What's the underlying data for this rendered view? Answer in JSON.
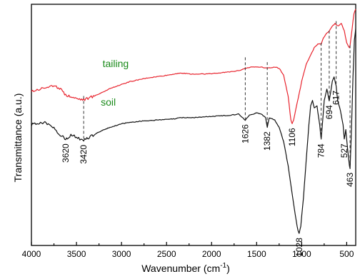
{
  "chart_data": {
    "type": "line",
    "xlabel": "Wavenumber (cm",
    "xlabel_sup": "-1",
    "xlabel_close": ")",
    "ylabel": "Transmittance (a.u.)",
    "xlim": [
      4000,
      400
    ],
    "x_ticks": [
      4000,
      3500,
      3000,
      2500,
      2000,
      1500,
      1000,
      500
    ],
    "y_ticks_shown": false,
    "grid": false,
    "series": [
      {
        "name": "tailing",
        "color": "#e8232d",
        "points": [
          [
            4000,
            0.64
          ],
          [
            3900,
            0.65
          ],
          [
            3800,
            0.66
          ],
          [
            3700,
            0.655
          ],
          [
            3620,
            0.625
          ],
          [
            3500,
            0.61
          ],
          [
            3420,
            0.605
          ],
          [
            3300,
            0.62
          ],
          [
            3100,
            0.655
          ],
          [
            2900,
            0.68
          ],
          [
            2700,
            0.695
          ],
          [
            2500,
            0.705
          ],
          [
            2350,
            0.715
          ],
          [
            2200,
            0.71
          ],
          [
            2000,
            0.712
          ],
          [
            1800,
            0.72
          ],
          [
            1700,
            0.725
          ],
          [
            1626,
            0.735
          ],
          [
            1550,
            0.74
          ],
          [
            1450,
            0.74
          ],
          [
            1382,
            0.735
          ],
          [
            1300,
            0.74
          ],
          [
            1250,
            0.735
          ],
          [
            1200,
            0.705
          ],
          [
            1150,
            0.62
          ],
          [
            1120,
            0.52
          ],
          [
            1106,
            0.505
          ],
          [
            1090,
            0.52
          ],
          [
            1050,
            0.59
          ],
          [
            1000,
            0.68
          ],
          [
            950,
            0.75
          ],
          [
            900,
            0.79
          ],
          [
            860,
            0.82
          ],
          [
            820,
            0.835
          ],
          [
            800,
            0.835
          ],
          [
            784,
            0.835
          ],
          [
            760,
            0.86
          ],
          [
            720,
            0.88
          ],
          [
            694,
            0.89
          ],
          [
            660,
            0.91
          ],
          [
            630,
            0.92
          ],
          [
            617,
            0.915
          ],
          [
            590,
            0.91
          ],
          [
            560,
            0.92
          ],
          [
            527,
            0.89
          ],
          [
            500,
            0.84
          ],
          [
            470,
            0.82
          ],
          [
            463,
            0.83
          ],
          [
            440,
            0.9
          ],
          [
            420,
            0.96
          ],
          [
            400,
            0.98
          ]
        ]
      },
      {
        "name": "soil",
        "color": "#111111",
        "points": [
          [
            4000,
            0.5
          ],
          [
            3900,
            0.51
          ],
          [
            3800,
            0.505
          ],
          [
            3750,
            0.49
          ],
          [
            3700,
            0.46
          ],
          [
            3650,
            0.45
          ],
          [
            3620,
            0.44
          ],
          [
            3600,
            0.445
          ],
          [
            3550,
            0.46
          ],
          [
            3500,
            0.45
          ],
          [
            3450,
            0.44
          ],
          [
            3420,
            0.435
          ],
          [
            3350,
            0.45
          ],
          [
            3200,
            0.48
          ],
          [
            3000,
            0.505
          ],
          [
            2800,
            0.515
          ],
          [
            2600,
            0.52
          ],
          [
            2400,
            0.525
          ],
          [
            2350,
            0.53
          ],
          [
            2200,
            0.53
          ],
          [
            2000,
            0.535
          ],
          [
            1800,
            0.54
          ],
          [
            1700,
            0.545
          ],
          [
            1626,
            0.52
          ],
          [
            1580,
            0.54
          ],
          [
            1500,
            0.55
          ],
          [
            1450,
            0.545
          ],
          [
            1400,
            0.53
          ],
          [
            1382,
            0.49
          ],
          [
            1360,
            0.53
          ],
          [
            1300,
            0.52
          ],
          [
            1250,
            0.49
          ],
          [
            1200,
            0.43
          ],
          [
            1150,
            0.33
          ],
          [
            1100,
            0.2
          ],
          [
            1060,
            0.1
          ],
          [
            1040,
            0.06
          ],
          [
            1028,
            0.05
          ],
          [
            1010,
            0.08
          ],
          [
            980,
            0.2
          ],
          [
            950,
            0.35
          ],
          [
            920,
            0.5
          ],
          [
            900,
            0.58
          ],
          [
            880,
            0.6
          ],
          [
            860,
            0.57
          ],
          [
            830,
            0.58
          ],
          [
            800,
            0.5
          ],
          [
            784,
            0.44
          ],
          [
            770,
            0.5
          ],
          [
            750,
            0.6
          ],
          [
            720,
            0.65
          ],
          [
            700,
            0.61
          ],
          [
            694,
            0.6
          ],
          [
            680,
            0.63
          ],
          [
            660,
            0.68
          ],
          [
            640,
            0.7
          ],
          [
            617,
            0.66
          ],
          [
            600,
            0.6
          ],
          [
            570,
            0.56
          ],
          [
            540,
            0.5
          ],
          [
            527,
            0.44
          ],
          [
            510,
            0.48
          ],
          [
            490,
            0.4
          ],
          [
            470,
            0.33
          ],
          [
            463,
            0.32
          ],
          [
            450,
            0.45
          ],
          [
            430,
            0.7
          ],
          [
            415,
            0.85
          ],
          [
            400,
            0.9
          ]
        ]
      }
    ],
    "series_labels": [
      {
        "text": "tailing",
        "color": "#1a8a1a",
        "x": 3210,
        "y": 0.74
      },
      {
        "text": "soil",
        "color": "#1a8a1a",
        "x": 3230,
        "y": 0.58
      }
    ],
    "peaks": [
      {
        "wavenumber": 3620,
        "label": "3620",
        "y_top": 0.44,
        "y_bottom": 0.44,
        "dashed": false
      },
      {
        "wavenumber": 3420,
        "label": "3420",
        "y_top": 0.62,
        "y_bottom": 0.435,
        "dashed": true
      },
      {
        "wavenumber": 1626,
        "label": "1626",
        "y_top": 0.78,
        "y_bottom": 0.52,
        "dashed": true
      },
      {
        "wavenumber": 1382,
        "label": "1382",
        "y_top": 0.76,
        "y_bottom": 0.49,
        "dashed": true
      },
      {
        "wavenumber": 1106,
        "label": "1106",
        "y_top": 0.505,
        "y_bottom": 0.505,
        "dashed": false
      },
      {
        "wavenumber": 1028,
        "label": "1028",
        "y_top": 0.05,
        "y_bottom": 0.05,
        "dashed": false
      },
      {
        "wavenumber": 784,
        "label": "784",
        "y_top": 0.84,
        "y_bottom": 0.44,
        "dashed": true
      },
      {
        "wavenumber": 694,
        "label": "694",
        "y_top": 0.89,
        "y_bottom": 0.6,
        "dashed": true
      },
      {
        "wavenumber": 617,
        "label": "617",
        "y_top": 0.93,
        "y_bottom": 0.66,
        "dashed": true
      },
      {
        "wavenumber": 527,
        "label": "527",
        "y_top": 0.44,
        "y_bottom": 0.44,
        "dashed": false
      },
      {
        "wavenumber": 463,
        "label": "463",
        "y_top": 0.83,
        "y_bottom": 0.32,
        "dashed": true
      }
    ]
  }
}
